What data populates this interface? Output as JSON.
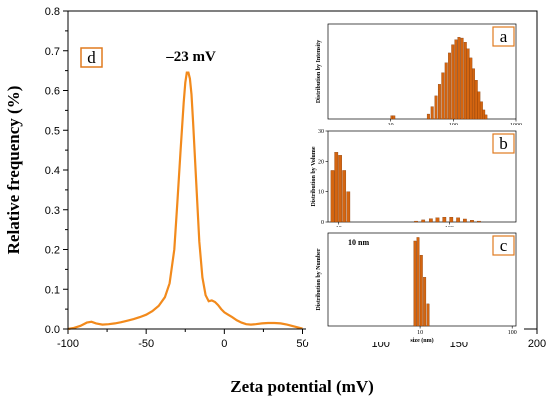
{
  "chart_data": [
    {
      "id": "main",
      "type": "line",
      "panel_label": "d",
      "annotation": "–23 mV",
      "xlabel": "Zeta potential (mV)",
      "ylabel": "Relative frequency (%)",
      "xlim": [
        -100,
        200
      ],
      "ylim": [
        0,
        0.8
      ],
      "xticks": [
        -100,
        -50,
        0,
        50,
        100,
        150,
        200
      ],
      "yticks": [
        0.0,
        0.1,
        0.2,
        0.3,
        0.4,
        0.5,
        0.6,
        0.7,
        0.8
      ],
      "ytick_labels": [
        "0.0",
        "0.1",
        "0.2",
        "0.3",
        "0.4",
        "0.5",
        "0.6",
        "0.7",
        "0.8"
      ],
      "color": "#f28a1c",
      "x": [
        -100,
        -96,
        -92,
        -88,
        -85,
        -82,
        -78,
        -74,
        -70,
        -66,
        -62,
        -58,
        -54,
        -50,
        -46,
        -42,
        -38,
        -35,
        -32,
        -30,
        -28,
        -26,
        -25,
        -24,
        -23,
        -22,
        -21,
        -20,
        -18,
        -16,
        -14,
        -12,
        -10,
        -8,
        -6,
        -4,
        -2,
        0,
        2,
        5,
        8,
        11,
        14,
        17,
        20,
        24,
        28,
        32,
        36,
        40,
        44,
        48,
        50
      ],
      "y": [
        0.0,
        0.003,
        0.008,
        0.016,
        0.018,
        0.014,
        0.011,
        0.012,
        0.014,
        0.017,
        0.021,
        0.025,
        0.03,
        0.036,
        0.045,
        0.058,
        0.08,
        0.115,
        0.2,
        0.32,
        0.45,
        0.57,
        0.62,
        0.645,
        0.645,
        0.63,
        0.59,
        0.52,
        0.37,
        0.22,
        0.13,
        0.085,
        0.07,
        0.072,
        0.068,
        0.06,
        0.05,
        0.042,
        0.037,
        0.03,
        0.022,
        0.016,
        0.012,
        0.011,
        0.012,
        0.014,
        0.015,
        0.015,
        0.014,
        0.011,
        0.007,
        0.003,
        0.001
      ]
    },
    {
      "id": "inset-a",
      "type": "bar",
      "panel_label": "a",
      "ylabel": "Distribution by Intensity",
      "xscale": "log",
      "xlim": [
        1,
        1000
      ],
      "xticks": [
        10,
        100,
        1000
      ],
      "xtick_labels": [
        "10",
        "100",
        "1000"
      ],
      "color": "#d46510",
      "x": [
        10.5,
        11.2,
        40,
        46,
        53,
        60,
        68,
        77,
        87,
        98,
        110,
        123,
        138,
        155,
        172,
        190,
        210,
        232,
        255,
        280,
        305,
        330
      ],
      "values": [
        0.04,
        0.04,
        0.06,
        0.15,
        0.28,
        0.42,
        0.56,
        0.68,
        0.8,
        0.9,
        0.96,
        0.99,
        0.98,
        0.93,
        0.85,
        0.74,
        0.61,
        0.47,
        0.33,
        0.21,
        0.11,
        0.05
      ]
    },
    {
      "id": "inset-b",
      "type": "bar",
      "panel_label": "b",
      "ylabel": "Distribution by Volume",
      "xscale": "log",
      "xlim": [
        8,
        400
      ],
      "xticks": [
        10,
        100
      ],
      "xtick_labels": [
        "10",
        "100"
      ],
      "yticks": [
        0,
        10,
        20,
        30
      ],
      "ytick_labels": [
        "0",
        "10",
        "20",
        "30"
      ],
      "color": "#d46510",
      "x": [
        8.8,
        9.5,
        10.3,
        11.2,
        12.2,
        50,
        58,
        68,
        78,
        90,
        104,
        120,
        138,
        160,
        185
      ],
      "values": [
        17,
        23,
        22,
        17,
        10,
        0.3,
        0.7,
        1.1,
        1.4,
        1.6,
        1.6,
        1.4,
        1.0,
        0.6,
        0.3
      ]
    },
    {
      "id": "inset-c",
      "type": "bar",
      "panel_label": "c",
      "annotation": "10 nm",
      "ylabel": "Distribution by Number",
      "xlabel": "size (nm)",
      "xscale": "log",
      "xlim": [
        1,
        110
      ],
      "xticks": [
        10,
        100
      ],
      "xtick_labels": [
        "10",
        "100"
      ],
      "color": "#d46510",
      "x": [
        8.8,
        9.5,
        10.3,
        11.2,
        12.2
      ],
      "values": [
        0.96,
        1.0,
        0.8,
        0.55,
        0.25
      ]
    }
  ]
}
